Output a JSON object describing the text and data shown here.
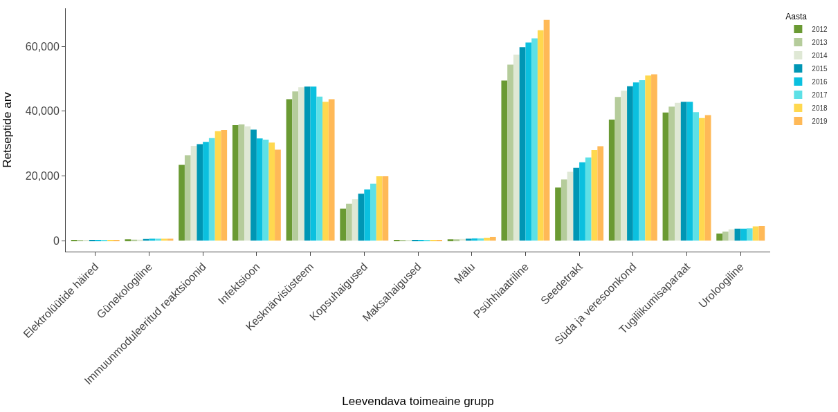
{
  "chart_data": {
    "type": "bar",
    "xlabel": "Leevendava toimeaine grupp",
    "ylabel": "Retseptide arv",
    "legend_title": "Aasta",
    "legend": "right",
    "categories": [
      "Elektrolüütide häired",
      "Günekologiline",
      "Immuunmoduleeritud reaktsioonid",
      "Infektsioon",
      "Kesknärvisüsteem",
      "Kopsuhaigused",
      "Maksahaigused",
      "Mälu",
      "Psühhiaatriline",
      "Seedetrakt",
      "Süda ja veresoonkond",
      "Tugiliikumisaparaat",
      "Uroloogiline"
    ],
    "ylim": [
      -3400,
      71800
    ],
    "yticks": [
      0,
      {
        "value": 20000,
        "label": "20,000"
      },
      {
        "value": 40000,
        "label": "40,000"
      },
      {
        "value": 60000,
        "label": "60,000"
      }
    ],
    "series": [
      {
        "name": "2012",
        "color": "#6a9a33",
        "values": [
          100,
          400,
          23400,
          35700,
          43700,
          9900,
          100,
          400,
          49500,
          16400,
          37400,
          39600,
          2200
        ]
      },
      {
        "name": "2013",
        "color": "#b5cc9b",
        "values": [
          100,
          300,
          26400,
          35900,
          46100,
          11400,
          100,
          400,
          54400,
          18900,
          44400,
          41400,
          2800
        ]
      },
      {
        "name": "2014",
        "color": "#dfe8d5",
        "values": [
          100,
          300,
          29300,
          35300,
          47400,
          12800,
          100,
          500,
          57500,
          21300,
          46300,
          42600,
          3500
        ]
      },
      {
        "name": "2015",
        "color": "#0096b4",
        "values": [
          100,
          500,
          29800,
          34300,
          47600,
          14500,
          100,
          600,
          59800,
          22500,
          47700,
          42900,
          3700
        ]
      },
      {
        "name": "2016",
        "color": "#0bc0df",
        "values": [
          100,
          600,
          30500,
          31600,
          47600,
          15800,
          100,
          700,
          61200,
          24200,
          48900,
          42900,
          3700
        ]
      },
      {
        "name": "2017",
        "color": "#5de0e6",
        "values": [
          100,
          600,
          31700,
          31200,
          44500,
          17600,
          100,
          700,
          62500,
          25700,
          49600,
          39700,
          3800
        ]
      },
      {
        "name": "2018",
        "color": "#ffd84f",
        "values": [
          100,
          600,
          33800,
          30300,
          42900,
          19900,
          100,
          900,
          65000,
          28000,
          51000,
          37900,
          4400
        ]
      },
      {
        "name": "2019",
        "color": "#ffb957",
        "values": [
          100,
          600,
          34200,
          28100,
          43700,
          19900,
          100,
          1100,
          68200,
          29200,
          51400,
          38800,
          4500
        ]
      }
    ]
  }
}
